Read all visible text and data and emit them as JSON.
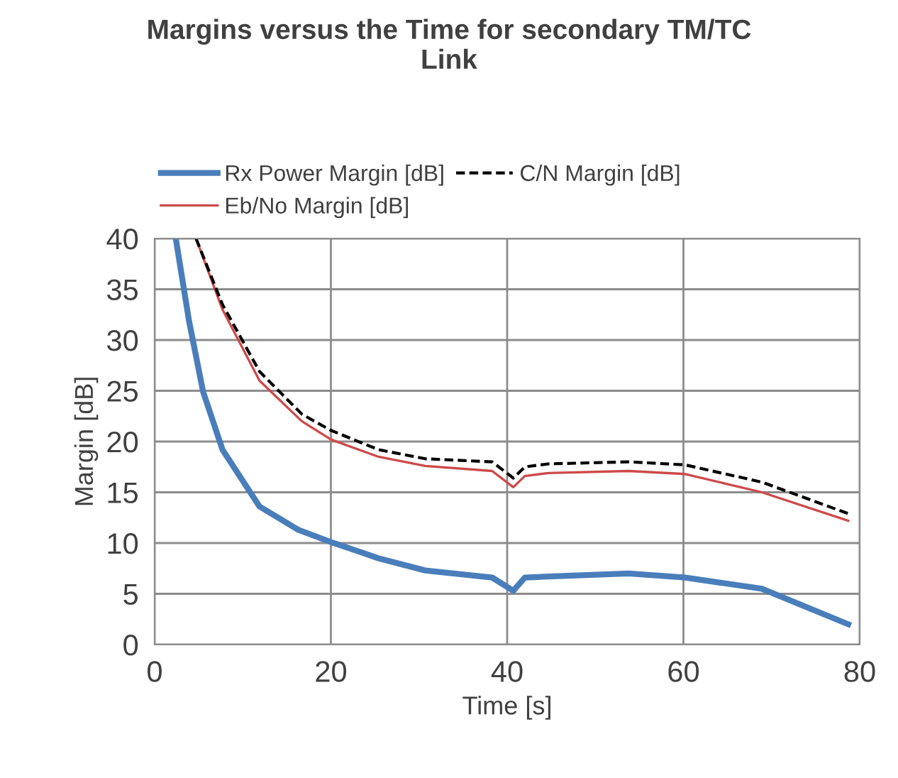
{
  "chart_data": {
    "type": "line",
    "title": "Margins versus the Time for secondary TM/TC Link",
    "xlabel": "Time [s]",
    "ylabel": "Margin [dB]",
    "xlim": [
      0,
      80
    ],
    "ylim": [
      0,
      40
    ],
    "xticks": [
      0,
      20,
      40,
      60,
      80
    ],
    "yticks": [
      0,
      5,
      10,
      15,
      20,
      25,
      30,
      35,
      40
    ],
    "grid": true,
    "legend": "top",
    "marker": "none",
    "series": [
      {
        "name": "Rx Power Margin [dB]",
        "color": "#4a7ebb",
        "line_style": "solid",
        "x": [
          2.4,
          3.9,
          5.5,
          7.7,
          11.9,
          16.3,
          20,
          25.4,
          30.7,
          38.3,
          40.7,
          42,
          44.7,
          53.8,
          60.2,
          68.9,
          78.7
        ],
        "values": [
          40,
          31.9,
          24.9,
          19.2,
          13.6,
          11.3,
          10.1,
          8.5,
          7.3,
          6.6,
          5.3,
          6.6,
          6.7,
          7.0,
          6.6,
          5.5,
          2.0
        ]
      },
      {
        "name": "Eb/No Margin [dB]",
        "color": "#cd4a4a",
        "line_style": "solid",
        "x": [
          4.7,
          7.7,
          11.9,
          16.7,
          20,
          25.4,
          30.7,
          38.3,
          40.7,
          42,
          44.7,
          53.8,
          60.2,
          68.9,
          78.7
        ],
        "values": [
          40,
          33,
          26,
          22.0,
          20.2,
          18.5,
          17.6,
          17.1,
          15.5,
          16.6,
          16.9,
          17.1,
          16.8,
          15.0,
          12.2
        ]
      },
      {
        "name": "C/N Margin [dB]",
        "color": "#000000",
        "line_style": "dashed",
        "x": [
          4.7,
          7.7,
          11.9,
          16.7,
          20,
          25.4,
          30.7,
          38.3,
          40.7,
          42,
          44.7,
          53.8,
          60.2,
          68.9,
          78.7
        ],
        "values": [
          40,
          33.5,
          26.9,
          22.7,
          21.1,
          19.2,
          18.3,
          18.0,
          16.4,
          17.5,
          17.8,
          18.0,
          17.7,
          16.0,
          12.9
        ]
      }
    ]
  }
}
